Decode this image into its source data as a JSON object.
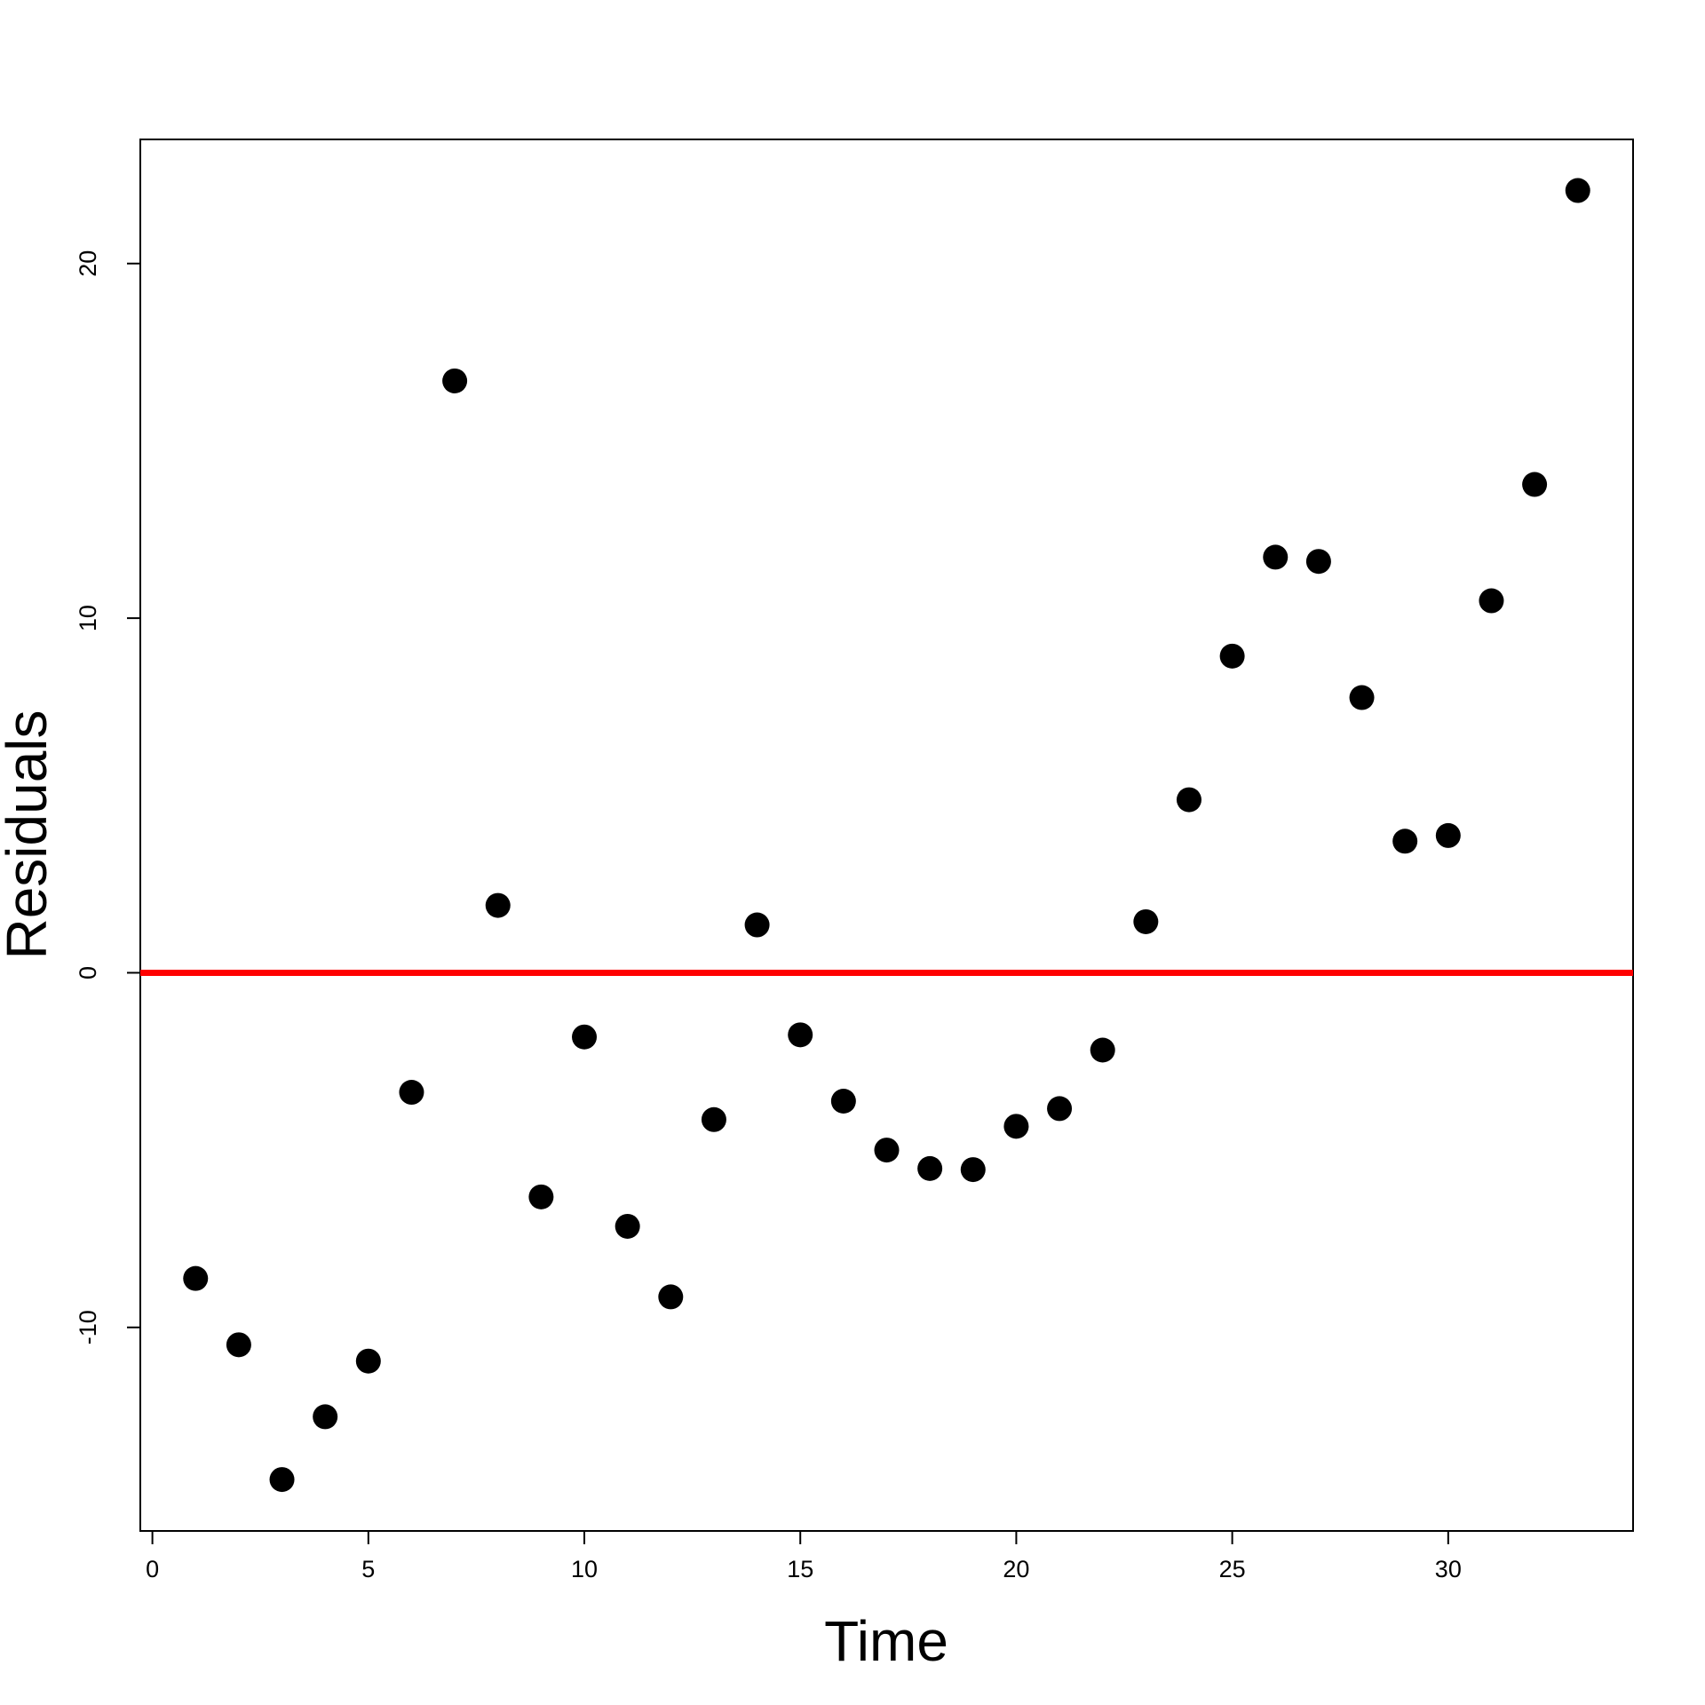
{
  "chart_data": {
    "type": "scatter",
    "x_label": "Time",
    "y_label": "Residuals",
    "x": [
      1,
      2,
      3,
      4,
      5,
      6,
      7,
      8,
      9,
      10,
      11,
      12,
      13,
      14,
      15,
      16,
      17,
      18,
      19,
      20,
      21,
      22,
      23,
      24,
      25,
      26,
      27,
      28,
      29,
      30,
      31,
      32,
      33
    ],
    "series": [
      {
        "color": "#000000",
        "values": [
          -8.62,
          -10.49,
          -14.29,
          -12.52,
          -10.95,
          -3.37,
          16.69,
          1.9,
          -6.32,
          -1.81,
          -7.15,
          -9.14,
          -4.14,
          1.35,
          -1.75,
          -3.62,
          -5.0,
          -5.52,
          -5.55,
          -4.33,
          -3.83,
          -2.18,
          1.44,
          4.88,
          8.93,
          11.72,
          11.6,
          7.76,
          3.71,
          3.87,
          10.49,
          13.77,
          22.06
        ]
      }
    ],
    "xlim": [
      -0.28,
      34.28
    ],
    "ylim": [
      -15.74,
      23.5
    ],
    "xticks": [
      0,
      5,
      10,
      15,
      20,
      25,
      30
    ],
    "yticks": [
      -10,
      0,
      10,
      20
    ],
    "hline": {
      "value": 0,
      "color": "#ff0000"
    }
  }
}
